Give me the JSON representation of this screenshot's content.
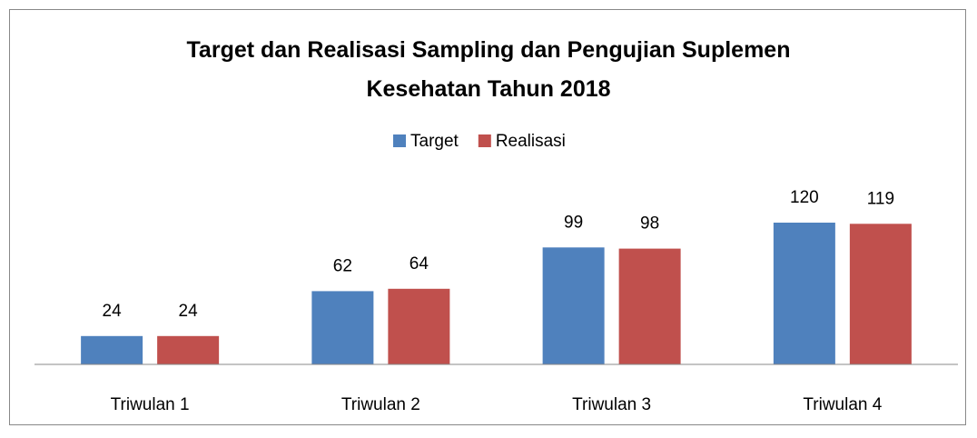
{
  "chart_data": {
    "type": "bar",
    "title": "Target dan Realisasi Sampling dan Pengujian Suplemen Kesehatan Tahun 2018",
    "categories": [
      "Triwulan 1",
      "Triwulan 2",
      "Triwulan 3",
      "Triwulan 4"
    ],
    "series": [
      {
        "name": "Target",
        "color": "#4f81bd",
        "values": [
          24,
          62,
          99,
          120
        ]
      },
      {
        "name": "Realisasi",
        "color": "#c0504d",
        "values": [
          24,
          64,
          98,
          119
        ]
      }
    ],
    "legend": "top"
  }
}
